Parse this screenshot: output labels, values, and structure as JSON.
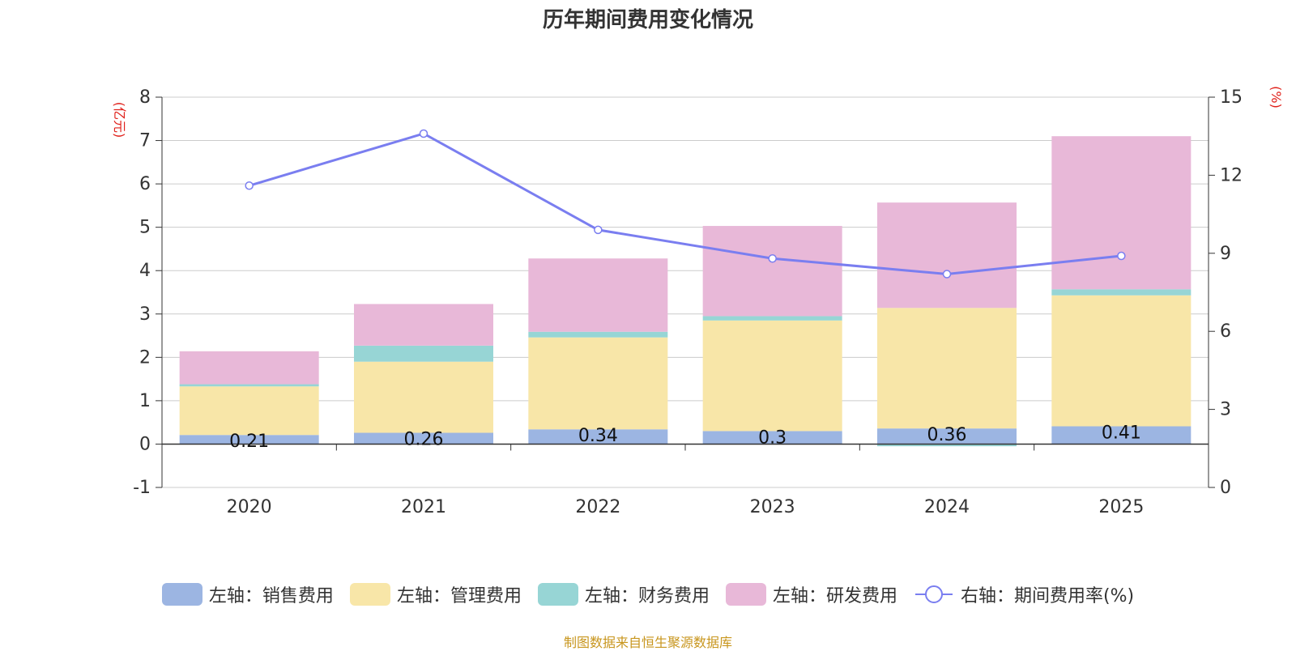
{
  "chart_data": {
    "type": "bar",
    "title": "历年期间费用变化情况",
    "categories": [
      "2020",
      "2021",
      "2022",
      "2023",
      "2024",
      "2025"
    ],
    "series": [
      {
        "name": "左轴：销售费用",
        "axis": "left",
        "type": "bar",
        "color": "#9cb5e2",
        "values": [
          0.21,
          0.26,
          0.34,
          0.3,
          0.36,
          0.41
        ],
        "labels": [
          "0.21",
          "0.26",
          "0.34",
          "0.3",
          "0.36",
          "0.41"
        ]
      },
      {
        "name": "左轴：管理费用",
        "axis": "left",
        "type": "bar",
        "color": "#f8e6a8",
        "values": [
          1.12,
          1.64,
          2.12,
          2.55,
          2.78,
          3.02
        ]
      },
      {
        "name": "左轴：财务费用",
        "axis": "left",
        "type": "bar",
        "color": "#97d5d5",
        "values": [
          0.05,
          0.37,
          0.13,
          0.1,
          -0.05,
          0.14
        ]
      },
      {
        "name": "左轴：研发费用",
        "axis": "left",
        "type": "bar",
        "color": "#e8b8d8",
        "values": [
          0.76,
          0.96,
          1.69,
          2.08,
          2.43,
          3.53
        ]
      },
      {
        "name": "右轴：期间费用率(%)",
        "axis": "right",
        "type": "line",
        "color": "#7a7ef0",
        "values": [
          11.6,
          13.6,
          9.9,
          8.8,
          8.2,
          8.9
        ]
      }
    ],
    "yaxis_left": {
      "label": "(亿元)",
      "min": -1,
      "max": 8,
      "ticks": [
        -1,
        0,
        1,
        2,
        3,
        4,
        5,
        6,
        7,
        8
      ]
    },
    "yaxis_right": {
      "label": "(%)",
      "min": 0,
      "max": 15,
      "ticks": [
        0,
        3,
        6,
        9,
        12,
        15
      ]
    },
    "grid": true,
    "legend_position": "bottom"
  },
  "footer": {
    "source": "制图数据来自恒生聚源数据库"
  }
}
